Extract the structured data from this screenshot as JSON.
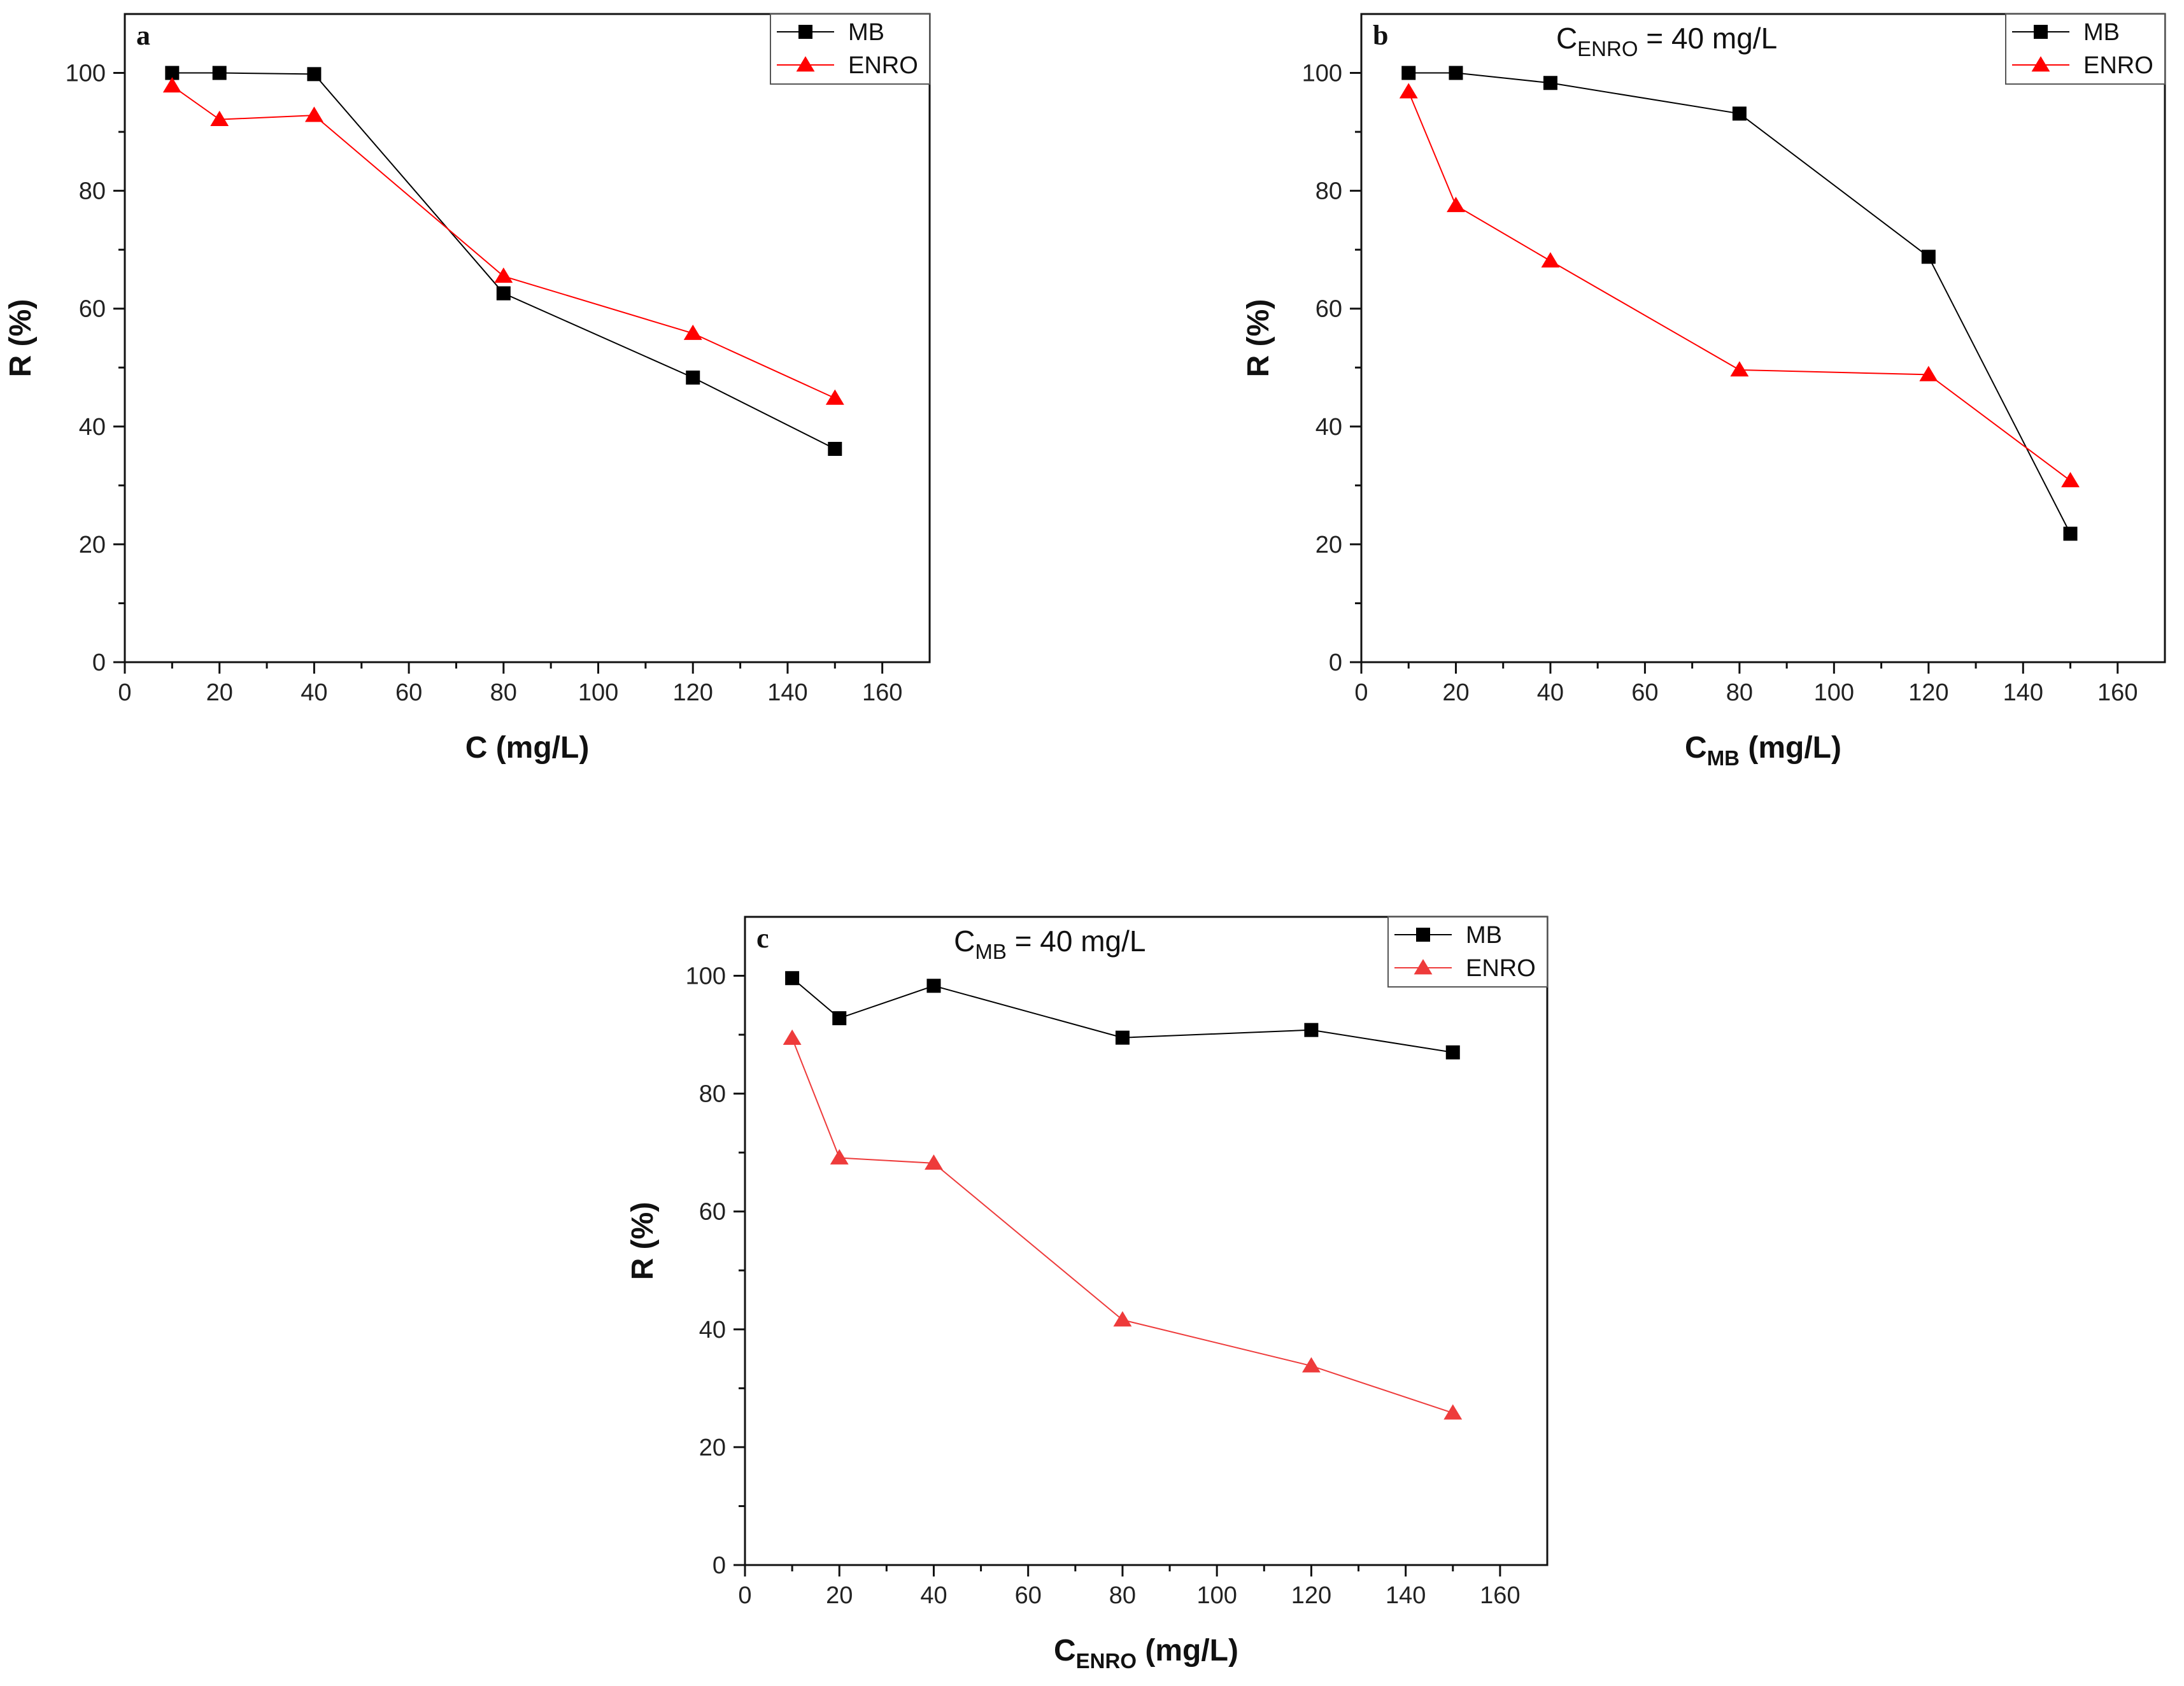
{
  "chart_data": [
    {
      "type": "line",
      "panel": "a",
      "title": "",
      "annotation": {
        "main": "",
        "sub": "",
        "suffix": ""
      },
      "xlabel": {
        "main": "C (mg/L)",
        "sub": "",
        "suffix": ""
      },
      "ylabel": "R (%)",
      "xlim": [
        0,
        170
      ],
      "ylim": [
        0,
        110
      ],
      "xticks": [
        0,
        20,
        40,
        60,
        80,
        100,
        120,
        140,
        160
      ],
      "yticks": [
        0,
        20,
        40,
        60,
        80,
        100
      ],
      "x": [
        10,
        20,
        40,
        80,
        120,
        150
      ],
      "series": [
        {
          "name": "MB",
          "marker": "square",
          "color": "#000000",
          "values": [
            100,
            100,
            99.8,
            62.6,
            48.3,
            36.2
          ]
        },
        {
          "name": "ENRO",
          "marker": "triangle",
          "color": "#ff0000",
          "values": [
            97.8,
            92.1,
            92.8,
            65.5,
            55.8,
            44.8
          ]
        }
      ],
      "legend": "top-right"
    },
    {
      "type": "line",
      "panel": "b",
      "title": "",
      "annotation": {
        "main": "C",
        "sub": "ENRO",
        "suffix": " = 40 mg/L"
      },
      "xlabel": {
        "main": "C",
        "sub": "MB",
        "suffix": " (mg/L)"
      },
      "ylabel": "R (%)",
      "xlim": [
        0,
        170
      ],
      "ylim": [
        0,
        110
      ],
      "xticks": [
        0,
        20,
        40,
        60,
        80,
        100,
        120,
        140,
        160
      ],
      "yticks": [
        0,
        20,
        40,
        60,
        80,
        100
      ],
      "x": [
        10,
        20,
        40,
        80,
        120,
        150
      ],
      "series": [
        {
          "name": "MB",
          "marker": "square",
          "color": "#000000",
          "values": [
            100,
            100,
            98.3,
            93.1,
            68.8,
            21.8
          ]
        },
        {
          "name": "ENRO",
          "marker": "triangle",
          "color": "#ff0000",
          "values": [
            96.8,
            77.5,
            68.1,
            49.6,
            48.8,
            30.8
          ]
        }
      ],
      "legend": "top-right"
    },
    {
      "type": "line",
      "panel": "c",
      "title": "",
      "annotation": {
        "main": "C",
        "sub": "MB",
        "suffix": " = 40 mg/L"
      },
      "xlabel": {
        "main": "C",
        "sub": "ENRO",
        "suffix": " (mg/L)"
      },
      "ylabel": "R (%)",
      "xlim": [
        0,
        170
      ],
      "ylim": [
        0,
        110
      ],
      "xticks": [
        0,
        20,
        40,
        60,
        80,
        100,
        120,
        140,
        160
      ],
      "yticks": [
        0,
        20,
        40,
        60,
        80,
        100
      ],
      "x": [
        10,
        20,
        40,
        80,
        120,
        150
      ],
      "series": [
        {
          "name": "MB",
          "marker": "square",
          "color": "#000000",
          "values": [
            99.6,
            92.8,
            98.3,
            89.5,
            90.8,
            87.0
          ]
        },
        {
          "name": "ENRO",
          "marker": "triangle",
          "color": "#ee3b3b",
          "values": [
            89.4,
            69.1,
            68.2,
            41.6,
            33.8,
            25.8
          ]
        }
      ],
      "legend": "top-right"
    }
  ]
}
